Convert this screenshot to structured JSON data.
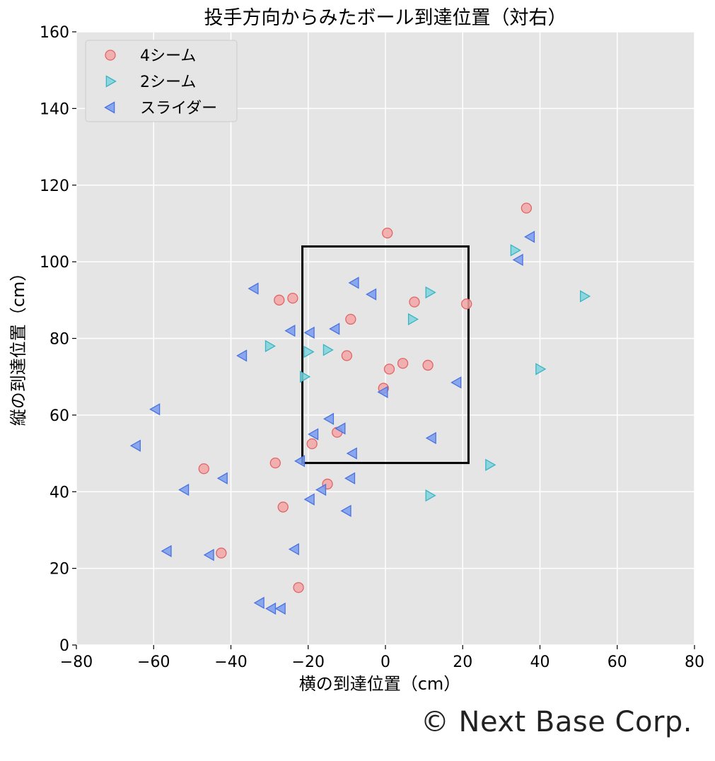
{
  "chart_data": {
    "type": "scatter",
    "title": "投手方向からみたボール到達位置（対右）",
    "xlabel": "横の到達位置（cm）",
    "ylabel": "縦の到達位置（cm）",
    "xlim": [
      -80,
      80
    ],
    "ylim": [
      0,
      160
    ],
    "xticks": [
      -80,
      -60,
      -40,
      -20,
      0,
      20,
      40,
      60,
      80
    ],
    "yticks": [
      0,
      20,
      40,
      60,
      80,
      100,
      120,
      140,
      160
    ],
    "grid": true,
    "legend_position": "top-left",
    "strike_zone": {
      "x": [
        -21.5,
        21.5
      ],
      "y": [
        47.5,
        104
      ]
    },
    "series": [
      {
        "name": "4シーム",
        "marker": "circle",
        "fill": "#f4a6a6",
        "stroke": "#e06666",
        "points": [
          [
            36.5,
            114
          ],
          [
            0.5,
            107.5
          ],
          [
            -24,
            90.5
          ],
          [
            -27.5,
            90
          ],
          [
            7.5,
            89.5
          ],
          [
            21,
            89
          ],
          [
            -9,
            85
          ],
          [
            -10,
            75.5
          ],
          [
            1,
            72
          ],
          [
            4.5,
            73.5
          ],
          [
            11,
            73
          ],
          [
            -0.5,
            67
          ],
          [
            -12.5,
            55.5
          ],
          [
            -19,
            52.5
          ],
          [
            -47,
            46
          ],
          [
            -28.5,
            47.5
          ],
          [
            -15,
            42
          ],
          [
            -26.5,
            36
          ],
          [
            -42.5,
            24
          ],
          [
            -22.5,
            15
          ]
        ]
      },
      {
        "name": "2シーム",
        "marker": "triangle-right",
        "fill": "#7fd3dd",
        "stroke": "#3ab4c4",
        "points": [
          [
            33.5,
            103
          ],
          [
            51.5,
            91
          ],
          [
            11.5,
            92
          ],
          [
            7,
            85
          ],
          [
            -30,
            78
          ],
          [
            -20,
            76.5
          ],
          [
            -15,
            77
          ],
          [
            -21,
            70
          ],
          [
            40,
            72
          ],
          [
            27,
            47
          ],
          [
            11.5,
            39
          ]
        ]
      },
      {
        "name": "スライダー",
        "marker": "triangle-left",
        "fill": "#7a9bef",
        "stroke": "#4a73e0",
        "points": [
          [
            37.5,
            106.5
          ],
          [
            34.5,
            100.5
          ],
          [
            -8,
            94.5
          ],
          [
            -3.5,
            91.5
          ],
          [
            -34,
            93
          ],
          [
            -24.5,
            82
          ],
          [
            -19.5,
            81.5
          ],
          [
            -13,
            82.5
          ],
          [
            -37,
            75.5
          ],
          [
            18.5,
            68.5
          ],
          [
            -0.5,
            66
          ],
          [
            -59.5,
            61.5
          ],
          [
            -14.5,
            59
          ],
          [
            -11.5,
            56.5
          ],
          [
            -18.5,
            55
          ],
          [
            12,
            54
          ],
          [
            -8.5,
            50
          ],
          [
            -22,
            48
          ],
          [
            -64.5,
            52
          ],
          [
            -42,
            43.5
          ],
          [
            -9,
            43.5
          ],
          [
            -52,
            40.5
          ],
          [
            -16.5,
            40.5
          ],
          [
            -19.5,
            38
          ],
          [
            -10,
            35
          ],
          [
            -56.5,
            24.5
          ],
          [
            -45.5,
            23.5
          ],
          [
            -23.5,
            25
          ],
          [
            -32.5,
            11
          ],
          [
            -29.5,
            9.5
          ],
          [
            -27,
            9.5
          ]
        ]
      }
    ]
  },
  "credit": "© Next Base Corp."
}
